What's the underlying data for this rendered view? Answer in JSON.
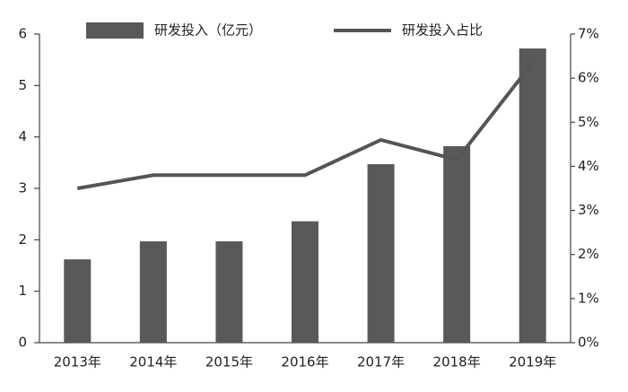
{
  "chart_data": {
    "type": "bar",
    "categories": [
      "2013年",
      "2014年",
      "2015年",
      "2016年",
      "2017年",
      "2018年",
      "2019年"
    ],
    "series": [
      {
        "name": "研发投入（亿元）",
        "type": "bar",
        "color": "#595959",
        "values": [
          1.62,
          1.97,
          1.97,
          2.36,
          3.47,
          3.82,
          5.72
        ]
      },
      {
        "name": "研发投入占比",
        "type": "line",
        "axis": "y2",
        "color": "#555555",
        "values": [
          3.5,
          3.8,
          3.8,
          3.8,
          4.6,
          4.15,
          6.35
        ]
      }
    ],
    "ylim": [
      0,
      6
    ],
    "yticks": [
      0,
      1,
      2,
      3,
      4,
      5,
      6
    ],
    "y2lim": [
      0,
      7
    ],
    "y2ticks": [
      {
        "value": 0,
        "label": "0%"
      },
      {
        "value": 1,
        "label": "1%"
      },
      {
        "value": 2,
        "label": "2%"
      },
      {
        "value": 3,
        "label": "3%"
      },
      {
        "value": 4,
        "label": "4%"
      },
      {
        "value": 5,
        "label": "5%"
      },
      {
        "value": 6,
        "label": "6%"
      },
      {
        "value": 7,
        "label": "7%"
      }
    ],
    "grid": false,
    "legend": "top"
  }
}
